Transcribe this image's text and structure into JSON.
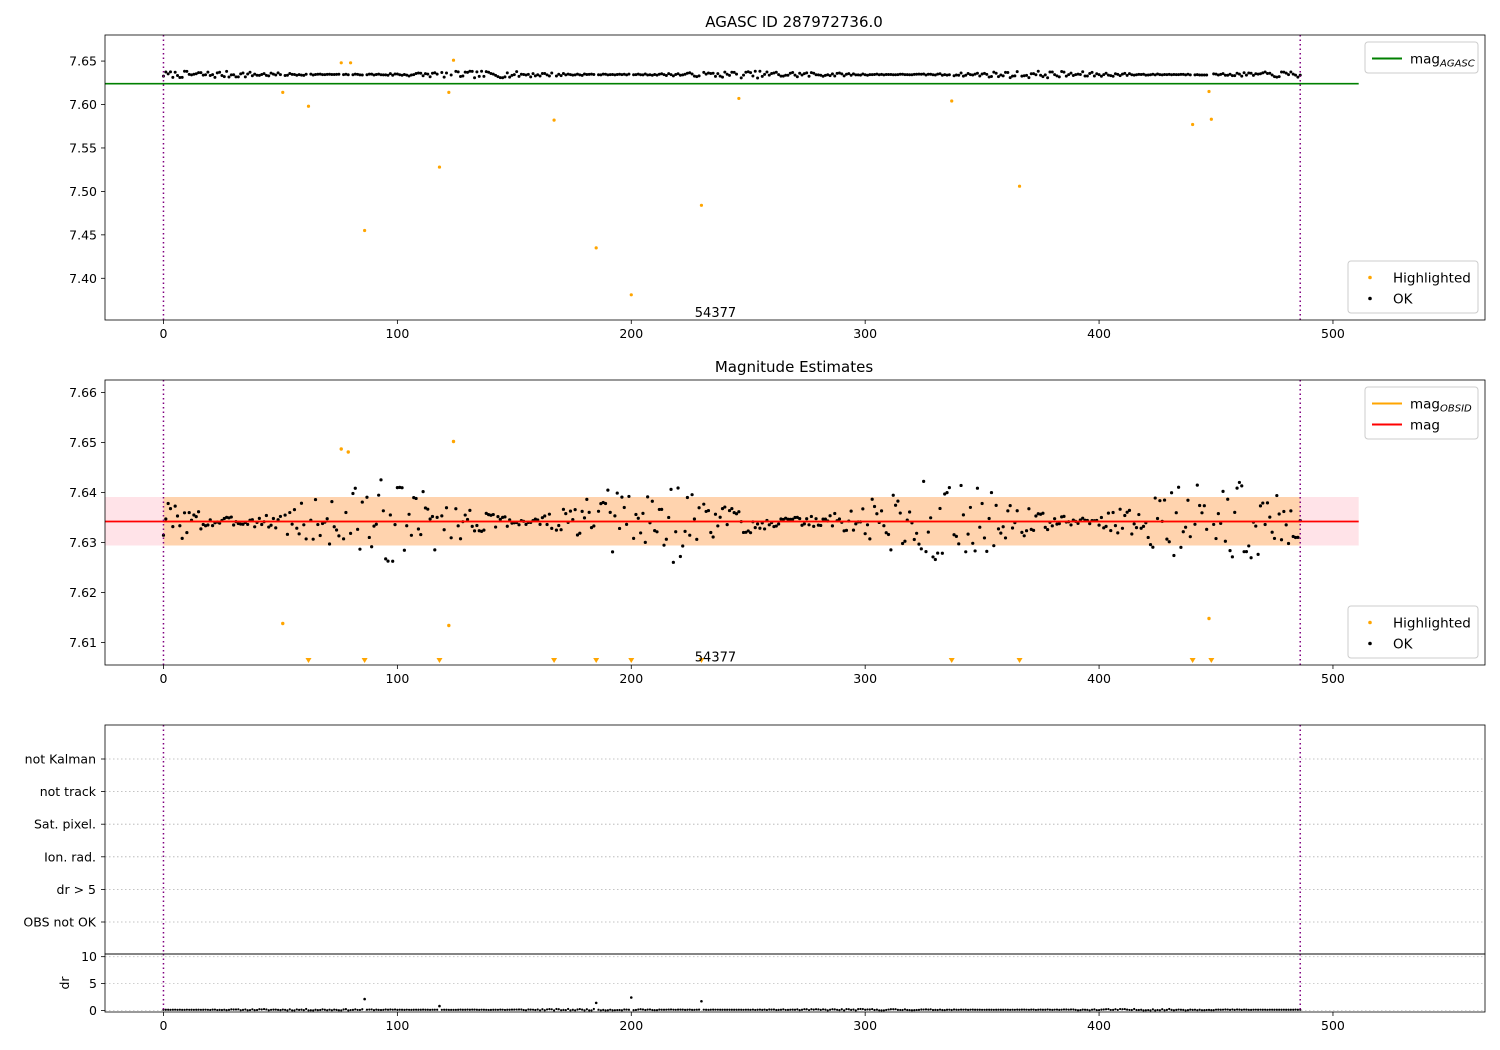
{
  "chart_data": [
    {
      "type": "scatter",
      "title": "AGASC ID 287972736.0",
      "xlim": [
        -25,
        565
      ],
      "ylim": [
        7.352,
        7.68
      ],
      "xticks": [
        0,
        100,
        200,
        300,
        400,
        500
      ],
      "yticks": [
        7.4,
        7.45,
        7.5,
        7.55,
        7.6,
        7.65
      ],
      "ytick_labels": [
        "7.40",
        "7.45",
        "7.50",
        "7.55",
        "7.60",
        "7.65"
      ],
      "obs_boundaries": [
        0,
        486
      ],
      "annotation": {
        "text": "54377",
        "x": 236,
        "y": 7.36
      },
      "reference_lines": [
        {
          "name": "mag",
          "subscript": "AGASC",
          "y": 7.624,
          "x_range": [
            -25,
            511
          ],
          "color": "#008000"
        }
      ],
      "series": [
        {
          "name": "Highlighted",
          "color": "#FFA500",
          "base": 7.6345,
          "amplitude": 0.004,
          "x_range": [
            0,
            486
          ],
          "points": [
            [
              51,
              7.614
            ],
            [
              62,
              7.598
            ],
            [
              76,
              7.648
            ],
            [
              80,
              7.648
            ],
            [
              86,
              7.455
            ],
            [
              118,
              7.528
            ],
            [
              122,
              7.614
            ],
            [
              124,
              7.651
            ],
            [
              167,
              7.582
            ],
            [
              185,
              7.435
            ],
            [
              200,
              7.381
            ],
            [
              230,
              7.484
            ],
            [
              246,
              7.607
            ],
            [
              337,
              7.604
            ],
            [
              366,
              7.506
            ],
            [
              440,
              7.577
            ],
            [
              447,
              7.615
            ],
            [
              448,
              7.583
            ]
          ]
        },
        {
          "name": "OK",
          "color": "#000000"
        }
      ],
      "legends": [
        {
          "position": "top-right",
          "entries": [
            {
              "label": "mag",
              "subscript": "AGASC",
              "kind": "line",
              "color": "#008000"
            }
          ]
        },
        {
          "position": "lower-right",
          "entries": [
            {
              "label": "Highlighted",
              "kind": "dot",
              "color": "#FFA500"
            },
            {
              "label": "OK",
              "kind": "dot",
              "color": "#000000"
            }
          ]
        }
      ]
    },
    {
      "type": "scatter",
      "title": "Magnitude Estimates",
      "xlim": [
        -25,
        565
      ],
      "ylim": [
        7.6055,
        7.6625
      ],
      "xticks": [
        0,
        100,
        200,
        300,
        400,
        500
      ],
      "yticks": [
        7.61,
        7.62,
        7.63,
        7.64,
        7.65,
        7.66
      ],
      "ytick_labels": [
        "7.61",
        "7.62",
        "7.63",
        "7.64",
        "7.65",
        "7.66"
      ],
      "obs_boundaries": [
        0,
        486
      ],
      "annotation": {
        "text": "54377",
        "x": 236,
        "y": 7.607
      },
      "reference_lines": [
        {
          "name": "mag",
          "subscript": "OBSID",
          "y": 7.6342,
          "x_range": [
            0,
            486
          ],
          "color": "#FFA500"
        },
        {
          "name": "mag",
          "y": 7.6342,
          "x_range": [
            -25,
            511
          ],
          "color": "#FF0000"
        }
      ],
      "bands": [
        {
          "y_range": [
            7.6294,
            7.6391
          ],
          "x_range": [
            -25,
            511
          ],
          "color": "#FFC0CB"
        },
        {
          "y_range": [
            7.6294,
            7.6391
          ],
          "x_range": [
            0,
            486
          ],
          "color": "#FFA500"
        }
      ],
      "series": [
        {
          "name": "Highlighted",
          "color": "#FFA500",
          "points": [
            [
              51,
              7.6138
            ],
            [
              76,
              7.6487
            ],
            [
              79,
              7.6481
            ],
            [
              122,
              7.6134
            ],
            [
              124,
              7.6502
            ],
            [
              447,
              7.6148
            ]
          ]
        },
        {
          "name": "OK",
          "color": "#000000",
          "base": 7.6342,
          "amplitude": 0.0085,
          "x_range": [
            0,
            486
          ]
        }
      ],
      "off_scale_markers": [
        62,
        86,
        118,
        167,
        185,
        200,
        230,
        337,
        366,
        440,
        448
      ],
      "legends": [
        {
          "position": "top-right",
          "entries": [
            {
              "label": "mag",
              "subscript": "OBSID",
              "kind": "line",
              "color": "#FFA500"
            },
            {
              "label": "mag",
              "kind": "line",
              "color": "#FF0000"
            }
          ]
        },
        {
          "position": "lower-right",
          "entries": [
            {
              "label": "Highlighted",
              "kind": "dot",
              "color": "#FFA500"
            },
            {
              "label": "OK",
              "kind": "dot",
              "color": "#000000"
            }
          ]
        }
      ]
    },
    {
      "type": "scatter",
      "title": "",
      "xlim": [
        -25,
        565
      ],
      "categories": [
        "not Kalman",
        "not track",
        "Sat. pixel.",
        "Ion. rad.",
        "dr > 5",
        "OBS not OK"
      ],
      "obs_boundaries": [
        0,
        486
      ],
      "series": []
    },
    {
      "type": "scatter",
      "title": "",
      "xlim": [
        -25,
        565
      ],
      "xticks": [
        0,
        100,
        200,
        300,
        400,
        500
      ],
      "ylim": [
        -0.3,
        10.5
      ],
      "yticks": [
        0,
        5,
        10
      ],
      "ylabel": "dr",
      "obs_boundaries": [
        0,
        486
      ],
      "series": [
        {
          "name": "dr",
          "color": "#000000",
          "base": 0.12,
          "amplitude": 0.15,
          "x_range": [
            0,
            486
          ],
          "points": [
            [
              86,
              2.1
            ],
            [
              118,
              0.8
            ],
            [
              185,
              1.4
            ],
            [
              200,
              2.4
            ],
            [
              230,
              1.7
            ]
          ]
        }
      ]
    }
  ]
}
